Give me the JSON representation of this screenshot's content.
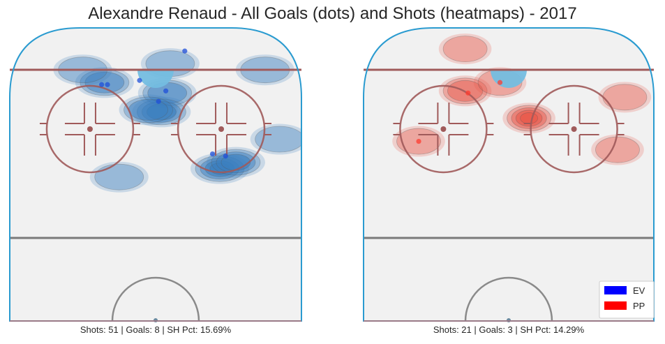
{
  "title": "Alexandre Renaud - All Goals (dots) and Shots (heatmaps) - 2017",
  "chart_data": [
    {
      "type": "heatmap",
      "panel": "EV",
      "caption": "Shots: 51 | Goals: 8 | SH Pct: 15.69%",
      "shots": 51,
      "goals": 8,
      "sh_pct": "15.69%",
      "color": "#1f4fd8",
      "heat_color": "#3a7fbf",
      "goal_points": [
        {
          "x": 20,
          "y": 89
        },
        {
          "x": -33,
          "y": 73
        },
        {
          "x": -11,
          "y": 75
        },
        {
          "x": 7,
          "y": 70
        },
        {
          "x": 2,
          "y": 65
        },
        {
          "x": 39,
          "y": 40
        },
        {
          "x": 48,
          "y": 39
        },
        {
          "x": -37,
          "y": 73
        }
      ],
      "heat_blobs": [
        {
          "x": -35,
          "y": 74,
          "level": 2
        },
        {
          "x": 8,
          "y": 69,
          "level": 2
        },
        {
          "x": 4,
          "y": 60,
          "level": 3
        },
        {
          "x": -5,
          "y": 61,
          "level": 2
        },
        {
          "x": 44,
          "y": 33,
          "level": 4
        },
        {
          "x": 55,
          "y": 36,
          "level": 3
        },
        {
          "x": 85,
          "y": 47,
          "level": 1
        },
        {
          "x": 75,
          "y": 80,
          "level": 1
        },
        {
          "x": -25,
          "y": 29,
          "level": 1
        },
        {
          "x": 10,
          "y": 83,
          "level": 1
        },
        {
          "x": -50,
          "y": 80,
          "level": 1
        }
      ]
    },
    {
      "type": "heatmap",
      "panel": "PP",
      "caption": "Shots: 21 | Goals: 3 | SH Pct: 14.29%",
      "shots": 21,
      "goals": 3,
      "sh_pct": "14.29%",
      "color": "#ff3b2f",
      "heat_color": "#e8584a",
      "goal_points": [
        {
          "x": -6,
          "y": 74
        },
        {
          "x": -62,
          "y": 46
        },
        {
          "x": -28,
          "y": 69
        }
      ],
      "heat_blobs": [
        {
          "x": 14,
          "y": 57,
          "level": 4
        },
        {
          "x": -30,
          "y": 70,
          "level": 2
        },
        {
          "x": -6,
          "y": 74,
          "level": 1
        },
        {
          "x": -62,
          "y": 46,
          "level": 1
        },
        {
          "x": 80,
          "y": 67,
          "level": 1
        },
        {
          "x": 75,
          "y": 42,
          "level": 1
        },
        {
          "x": -30,
          "y": 90,
          "level": 1
        }
      ]
    }
  ],
  "legend": {
    "items": [
      {
        "label": "EV",
        "color": "#0000ff"
      },
      {
        "label": "PP",
        "color": "#ff0000"
      }
    ],
    "placement": "bottom-right"
  }
}
